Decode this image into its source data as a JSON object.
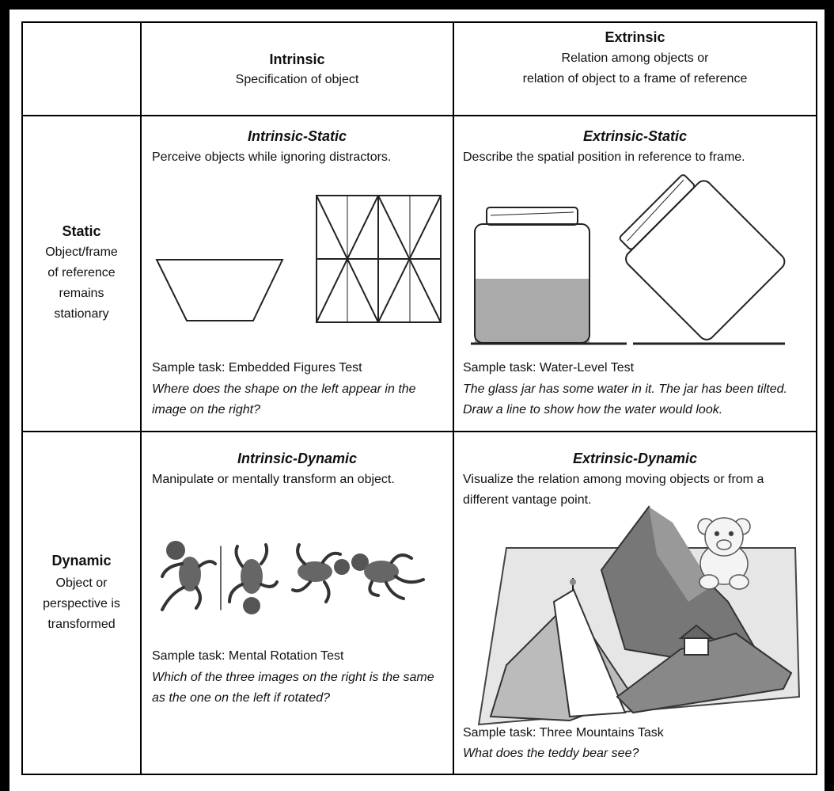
{
  "columns": [
    {
      "title": "Intrinsic",
      "subtitle": "Specification of object"
    },
    {
      "title": "Extrinsic",
      "subtitle_lines": [
        "Relation among objects or",
        "relation of object to a frame of reference"
      ]
    }
  ],
  "rows": [
    {
      "title": "Static",
      "description_lines": [
        "Object/frame",
        "of reference",
        "remains",
        "stationary"
      ],
      "cells": [
        {
          "title": "Intrinsic-Static",
          "description": "Perceive objects while ignoring distractors.",
          "sample_task": "Sample task: Embedded Figures Test",
          "question": "Where does the shape on the left appear in the image on the right?"
        },
        {
          "title": "Extrinsic-Static",
          "description": "Describe the spatial position in reference to frame.",
          "sample_task": "Sample task: Water-Level Test",
          "question": "The glass jar has some water in it. The jar has been tilted. Draw a line to show how the water would look."
        }
      ]
    },
    {
      "title": "Dynamic",
      "description_lines": [
        "Object or",
        "perspective is",
        "transformed"
      ],
      "cells": [
        {
          "title": "Intrinsic-Dynamic",
          "description": "Manipulate or mentally transform an object.",
          "sample_task": "Sample task: Mental Rotation Test",
          "question": "Which of the three images on the right is the same as the one on the left if rotated?"
        },
        {
          "title": "Extrinsic-Dynamic",
          "description": "Visualize the relation among moving objects or from a different vantage point.",
          "sample_task": "Sample task: Three Mountains Task",
          "question": "What does the teddy bear see?"
        }
      ]
    }
  ]
}
